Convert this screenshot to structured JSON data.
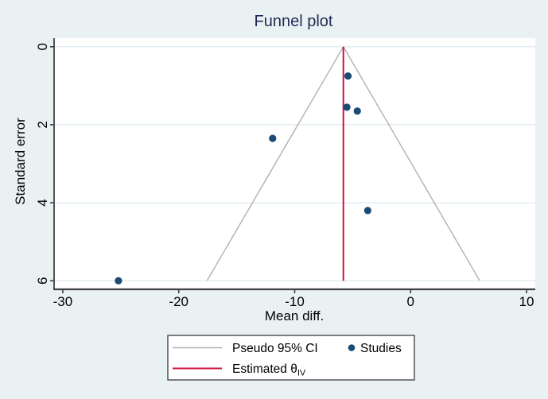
{
  "figure": {
    "background_color": "#eaf1f3",
    "plot_background": "#ffffff",
    "title_color": "#1e2c55",
    "axis_color": "#404040",
    "tick_label_color": "#000000",
    "gridline_color": "#e3edf2",
    "legend_border_color": "#3c3c3c",
    "legend_background": "#ffffff"
  },
  "chart_data": {
    "type": "scatter",
    "title": "Funnel plot",
    "xlabel": "Mean diff.",
    "ylabel": "Standard error",
    "x_ticks": [
      -30,
      -20,
      -10,
      0,
      10
    ],
    "y_ticks": [
      0,
      2,
      4,
      6
    ],
    "xlim": [
      -30.75,
      10.75
    ],
    "ylim": [
      -0.22,
      6.22
    ],
    "y_axis_inverted": true,
    "grid": "horizontal-only",
    "series": [
      {
        "name": "Studies",
        "marker": "circle",
        "color": "#1b4a73",
        "points": [
          {
            "mean_diff": -5.4,
            "standard_error": 0.75
          },
          {
            "mean_diff": -5.5,
            "standard_error": 1.55
          },
          {
            "mean_diff": -4.6,
            "standard_error": 1.65
          },
          {
            "mean_diff": -11.9,
            "standard_error": 2.35
          },
          {
            "mean_diff": -3.7,
            "standard_error": 4.2
          },
          {
            "mean_diff": -25.2,
            "standard_error": 6.0
          }
        ]
      }
    ],
    "estimate": {
      "value": -5.8,
      "color": "#d10f3c",
      "label": "Estimated θ",
      "label_subscript": "IV"
    },
    "pseudo_ci": {
      "label": "Pseudo 95% CI",
      "multiplier": 1.96,
      "se_max": 6,
      "color": "#b0b0b0"
    },
    "legend": {
      "position": "bottom",
      "items": [
        {
          "swatch": "line",
          "color": "#b0b0b0",
          "label": "Pseudo 95% CI",
          "subscript": ""
        },
        {
          "swatch": "dot",
          "color": "#1b4a73",
          "label": "Studies",
          "subscript": ""
        },
        {
          "swatch": "line",
          "color": "#d10f3c",
          "label": "Estimated θ",
          "subscript": "IV"
        }
      ]
    }
  }
}
